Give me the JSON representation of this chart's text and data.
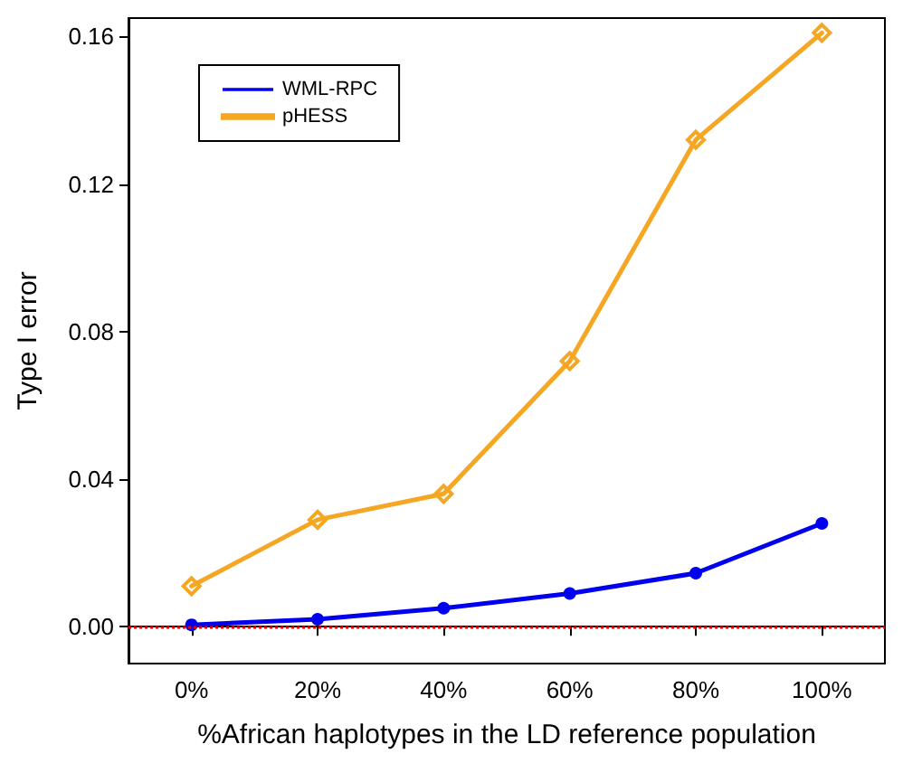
{
  "chart_data": {
    "type": "line",
    "xlabel": "%African haplotypes in the LD reference population",
    "ylabel": "Type I error",
    "categories": [
      "0%",
      "20%",
      "40%",
      "60%",
      "80%",
      "100%"
    ],
    "series": [
      {
        "name": "WML-RPC",
        "color": "#0000ee",
        "marker": "circle",
        "values": [
          0.0005,
          0.002,
          0.005,
          0.009,
          0.0145,
          0.028
        ]
      },
      {
        "name": "pHESS",
        "color": "#f5a623",
        "marker": "diamond",
        "values": [
          0.011,
          0.029,
          0.036,
          0.072,
          0.132,
          0.161
        ]
      }
    ],
    "ylim": [
      -0.01,
      0.165
    ],
    "yticks": [
      {
        "value": 0,
        "label": "0.00"
      },
      0.04,
      0.08,
      0.12,
      0.16
    ],
    "ref_lines": [
      {
        "axis": "y",
        "value": 0,
        "color": "#ee0000",
        "line_style": "dotted"
      }
    ],
    "grid": false,
    "legend": "top left"
  }
}
